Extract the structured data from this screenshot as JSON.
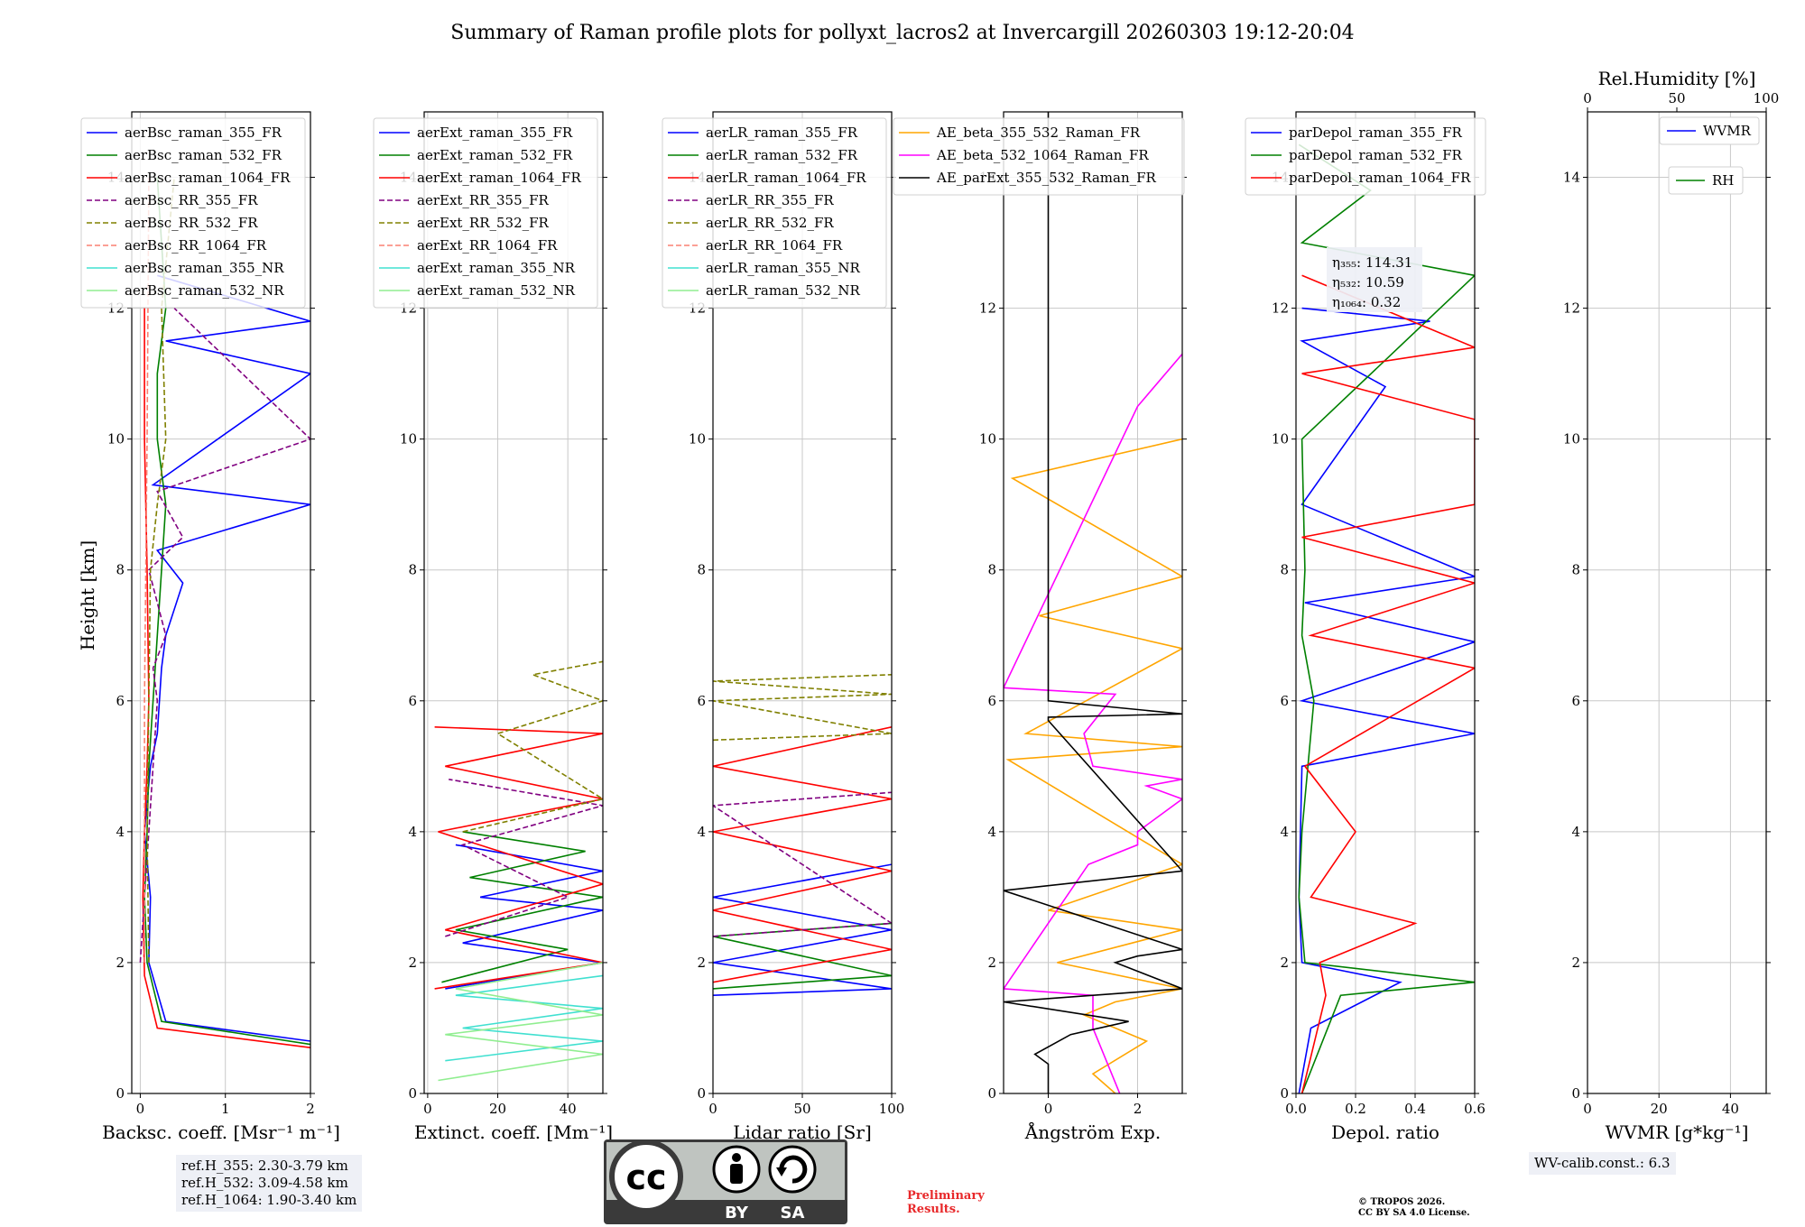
{
  "figure": {
    "title": "Summary of Raman profile plots for pollyxt_lacros2 at Invercargill 20260303 19:12-20:04",
    "ylabel": "Height [km]"
  },
  "chart_data": [
    {
      "type": "line",
      "id": "backscatter",
      "xlabel": "Backsc. coeff. [Msr⁻¹ m⁻¹]",
      "xlim": [
        -0.1,
        2
      ],
      "xticks": [
        "0",
        "1",
        "2"
      ],
      "xtick_values": [
        0,
        1,
        2
      ],
      "ylim": [
        0,
        15
      ],
      "yticks": [
        "0",
        "2",
        "4",
        "6",
        "8",
        "10",
        "12",
        "14"
      ],
      "ytick_values": [
        0,
        2,
        4,
        6,
        8,
        10,
        12,
        14
      ],
      "legend": "upper-left",
      "series": [
        {
          "name": "aerBsc_raman_355_FR",
          "color": "#0000ff",
          "dash": false,
          "x": [
            2.0,
            0.3,
            0.1,
            0.12,
            0.05,
            0.12,
            0.2,
            0.25,
            0.3,
            0.5,
            0.2,
            2.0,
            0.15,
            2.0,
            0.3,
            2.0,
            0.2
          ],
          "y": [
            0.8,
            1.1,
            2.0,
            3.0,
            4.0,
            5.0,
            5.5,
            6.5,
            7.0,
            7.8,
            8.3,
            9.0,
            9.3,
            11.0,
            11.5,
            11.8,
            12.5
          ]
        },
        {
          "name": "aerBsc_raman_532_FR",
          "color": "#008000",
          "dash": false,
          "x": [
            2.0,
            0.25,
            0.08,
            0.05,
            0.08,
            0.1,
            0.15,
            0.2,
            0.25,
            0.3,
            0.2,
            0.2,
            0.3,
            0.2
          ],
          "y": [
            0.75,
            1.1,
            2.0,
            3.0,
            4.0,
            5.0,
            6.0,
            7.0,
            8.0,
            9.0,
            10.0,
            11.0,
            12.0,
            14.0
          ]
        },
        {
          "name": "aerBsc_raman_1064_FR",
          "color": "#ff0000",
          "dash": false,
          "x": [
            2.0,
            0.2,
            0.05,
            0.03,
            0.05,
            0.08,
            0.1,
            0.08,
            0.05,
            0.05
          ],
          "y": [
            0.7,
            1.0,
            1.8,
            3.0,
            4.0,
            5.0,
            6.0,
            8.0,
            10.0,
            12.0
          ]
        },
        {
          "name": "aerBsc_RR_355_FR",
          "color": "#800080",
          "dash": true,
          "x": [
            0.0,
            0.05,
            0.1,
            0.15,
            0.2,
            0.15,
            0.3,
            0.1,
            0.5,
            0.2,
            2.0,
            0.4
          ],
          "y": [
            2.0,
            3.0,
            4.0,
            5.0,
            6.0,
            6.5,
            7.0,
            8.0,
            8.5,
            9.2,
            10.0,
            12.0
          ]
        },
        {
          "name": "aerBsc_RR_532_FR",
          "color": "#808000",
          "dash": true,
          "x": [
            0.1,
            0.08,
            0.1,
            0.12,
            0.2,
            0.3,
            0.25,
            0.4
          ],
          "y": [
            2.0,
            4.0,
            6.0,
            8.0,
            9.0,
            10.0,
            12.0,
            14.0
          ]
        },
        {
          "name": "aerBsc_RR_1064_FR",
          "color": "#fa8072",
          "dash": true,
          "x": [
            0.05,
            0.05,
            0.08,
            0.1
          ],
          "y": [
            2.0,
            6.0,
            10.0,
            14.0
          ]
        },
        {
          "name": "aerBsc_raman_355_NR",
          "color": "#40e0d0",
          "dash": false,
          "x": [],
          "y": []
        },
        {
          "name": "aerBsc_raman_532_NR",
          "color": "#90ee90",
          "dash": false,
          "x": [],
          "y": []
        }
      ]
    },
    {
      "type": "line",
      "id": "extinction",
      "xlabel": "Extinct. coeff. [Mm⁻¹]",
      "xlim": [
        -1,
        50
      ],
      "xticks": [
        "0",
        "20",
        "40"
      ],
      "xtick_values": [
        0,
        20,
        40
      ],
      "ylim": [
        0,
        15
      ],
      "yticks": [
        "0",
        "2",
        "4",
        "6",
        "8",
        "10",
        "12",
        "14"
      ],
      "ytick_values": [
        0,
        2,
        4,
        6,
        8,
        10,
        12,
        14
      ],
      "legend": "upper-left",
      "series": [
        {
          "name": "aerExt_raman_355_FR",
          "color": "#0000ff",
          "dash": false,
          "x": [
            5,
            50,
            10,
            50,
            15,
            50,
            8
          ],
          "y": [
            1.6,
            2.0,
            2.3,
            2.8,
            3.0,
            3.4,
            3.8
          ]
        },
        {
          "name": "aerExt_raman_532_FR",
          "color": "#008000",
          "dash": false,
          "x": [
            4,
            40,
            8,
            50,
            12,
            45,
            10
          ],
          "y": [
            1.7,
            2.2,
            2.5,
            3.0,
            3.3,
            3.7,
            4.0
          ]
        },
        {
          "name": "aerExt_raman_1064_FR",
          "color": "#ff0000",
          "dash": false,
          "x": [
            2,
            50,
            5,
            50,
            3,
            50,
            5,
            50,
            2
          ],
          "y": [
            1.6,
            2.0,
            2.5,
            3.2,
            4.0,
            4.5,
            5.0,
            5.5,
            5.6
          ]
        },
        {
          "name": "aerExt_RR_355_FR",
          "color": "#800080",
          "dash": true,
          "x": [
            5,
            40,
            10,
            50,
            6
          ],
          "y": [
            2.4,
            3.0,
            3.8,
            4.4,
            4.8
          ]
        },
        {
          "name": "aerExt_RR_532_FR",
          "color": "#808000",
          "dash": true,
          "x": [
            10,
            50,
            20,
            50,
            30,
            50
          ],
          "y": [
            4.0,
            4.5,
            5.5,
            6.0,
            6.4,
            6.6
          ]
        },
        {
          "name": "aerExt_RR_1064_FR",
          "color": "#fa8072",
          "dash": true,
          "x": [],
          "y": []
        },
        {
          "name": "aerExt_raman_355_NR",
          "color": "#40e0d0",
          "dash": false,
          "x": [
            5,
            50,
            10,
            50,
            8,
            50
          ],
          "y": [
            0.5,
            0.8,
            1.0,
            1.3,
            1.5,
            1.8
          ]
        },
        {
          "name": "aerExt_raman_532_NR",
          "color": "#90ee90",
          "dash": false,
          "x": [
            3,
            50,
            5,
            50,
            8,
            50
          ],
          "y": [
            0.2,
            0.6,
            0.9,
            1.2,
            1.6,
            2.0
          ]
        }
      ]
    },
    {
      "type": "line",
      "id": "lidar_ratio",
      "xlabel": "Lidar ratio [Sr]",
      "xlim": [
        0,
        100
      ],
      "xticks": [
        "0",
        "50",
        "100"
      ],
      "xtick_values": [
        0,
        50,
        100
      ],
      "ylim": [
        0,
        15
      ],
      "yticks": [
        "0",
        "2",
        "4",
        "6",
        "8",
        "10",
        "12",
        "14"
      ],
      "ytick_values": [
        0,
        2,
        4,
        6,
        8,
        10,
        12,
        14
      ],
      "legend": "upper-left",
      "series": [
        {
          "name": "aerLR_raman_355_FR",
          "color": "#0000ff",
          "dash": false,
          "x": [
            0,
            100,
            0,
            100,
            0,
            100
          ],
          "y": [
            1.5,
            1.6,
            2.0,
            2.5,
            3.0,
            3.5
          ]
        },
        {
          "name": "aerLR_raman_532_FR",
          "color": "#008000",
          "dash": false,
          "x": [
            0,
            100,
            0,
            100
          ],
          "y": [
            1.6,
            1.8,
            2.4,
            2.6
          ]
        },
        {
          "name": "aerLR_raman_1064_FR",
          "color": "#ff0000",
          "dash": false,
          "x": [
            0,
            100,
            0,
            100,
            0,
            100,
            0,
            100
          ],
          "y": [
            1.7,
            2.2,
            2.8,
            3.4,
            4.0,
            4.5,
            5.0,
            5.6
          ]
        },
        {
          "name": "aerLR_RR_355_FR",
          "color": "#800080",
          "dash": true,
          "x": [
            0,
            100,
            0,
            100
          ],
          "y": [
            2.4,
            2.6,
            4.4,
            4.6
          ]
        },
        {
          "name": "aerLR_RR_532_FR",
          "color": "#808000",
          "dash": true,
          "x": [
            0,
            100,
            0,
            100,
            0,
            100
          ],
          "y": [
            5.4,
            5.5,
            6.0,
            6.1,
            6.3,
            6.4
          ]
        },
        {
          "name": "aerLR_RR_1064_FR",
          "color": "#fa8072",
          "dash": true,
          "x": [],
          "y": []
        },
        {
          "name": "aerLR_raman_355_NR",
          "color": "#40e0d0",
          "dash": false,
          "x": [],
          "y": []
        },
        {
          "name": "aerLR_raman_532_NR",
          "color": "#90ee90",
          "dash": false,
          "x": [],
          "y": []
        }
      ]
    },
    {
      "type": "line",
      "id": "angstrom",
      "xlabel": "Ångström Exp.",
      "xlim": [
        -1,
        3
      ],
      "xticks": [
        "0",
        "2"
      ],
      "xtick_values": [
        0,
        2
      ],
      "ylim": [
        0,
        15
      ],
      "yticks": [
        "0",
        "2",
        "4",
        "6",
        "8",
        "10",
        "12",
        "14"
      ],
      "ytick_values": [
        0,
        2,
        4,
        6,
        8,
        10,
        12,
        14
      ],
      "legend": "upper-left",
      "series": [
        {
          "name": "AE_beta_355_532_Raman_FR",
          "color": "#ffa500",
          "dash": false,
          "x": [
            1.5,
            1.0,
            2.2,
            0.8,
            1.5,
            3.0,
            0.2,
            3.0,
            0.0,
            3.0,
            -0.9,
            3.0,
            -0.5,
            3.0,
            -0.2,
            3.0,
            -0.8,
            3.0
          ],
          "y": [
            0.0,
            0.3,
            0.8,
            1.2,
            1.4,
            1.6,
            2.0,
            2.5,
            2.8,
            3.5,
            5.1,
            5.3,
            5.5,
            6.8,
            7.3,
            7.9,
            9.4,
            10.0
          ]
        },
        {
          "name": "AE_beta_532_1064_Raman_FR",
          "color": "#ff00ff",
          "dash": false,
          "x": [
            1.6,
            1.0,
            1.0,
            -1.0,
            0.9,
            2.0,
            2.0,
            3.0,
            2.2,
            3.0,
            1.0,
            0.8,
            1.5,
            -1.0,
            2.0,
            3.0
          ],
          "y": [
            0.0,
            1.0,
            1.5,
            1.6,
            3.5,
            3.8,
            4.0,
            4.5,
            4.7,
            4.8,
            5.0,
            5.5,
            6.1,
            6.2,
            10.5,
            11.3
          ]
        },
        {
          "name": "AE_parExt_355_532_Raman_FR",
          "color": "#000000",
          "dash": false,
          "x": [
            0.0,
            0.0,
            -0.3,
            0.5,
            1.8,
            -1.0,
            3.0,
            1.5,
            2.0,
            3.0,
            -1.0,
            3.0,
            0.0,
            0.0,
            3.0,
            0.0,
            0.0
          ],
          "y": [
            0.0,
            0.45,
            0.6,
            0.9,
            1.1,
            1.4,
            1.6,
            2.0,
            2.1,
            2.2,
            3.1,
            3.4,
            5.7,
            5.75,
            5.8,
            6.0,
            15.0
          ]
        }
      ]
    },
    {
      "type": "line",
      "id": "depolarization",
      "xlabel": "Depol. ratio",
      "xlim": [
        0,
        0.6
      ],
      "xticks": [
        "0.0",
        "0.2",
        "0.4",
        "0.6"
      ],
      "xtick_values": [
        0,
        0.2,
        0.4,
        0.6
      ],
      "ylim": [
        0,
        15
      ],
      "yticks": [
        "0",
        "2",
        "4",
        "6",
        "8",
        "10",
        "12",
        "14"
      ],
      "ytick_values": [
        0,
        2,
        4,
        6,
        8,
        10,
        12,
        14
      ],
      "legend": "upper-left",
      "series": [
        {
          "name": "parDepol_raman_355_FR",
          "color": "#0000ff",
          "dash": false,
          "x": [
            0.01,
            0.05,
            0.35,
            0.02,
            0.01,
            0.02,
            0.6,
            0.02,
            0.6,
            0.03,
            0.6,
            0.02,
            0.3,
            0.02,
            0.45,
            0.02
          ],
          "y": [
            0.0,
            1.0,
            1.7,
            2.0,
            3.0,
            5.0,
            5.5,
            6.0,
            6.9,
            7.5,
            7.9,
            9.0,
            10.8,
            11.5,
            11.8,
            12.0
          ]
        },
        {
          "name": "parDepol_raman_532_FR",
          "color": "#008000",
          "dash": false,
          "x": [
            0.02,
            0.15,
            0.6,
            0.03,
            0.01,
            0.02,
            0.06,
            0.02,
            0.03,
            0.02,
            0.6,
            0.02,
            0.25,
            0.01
          ],
          "y": [
            0.0,
            1.5,
            1.7,
            2.0,
            3.0,
            4.0,
            6.0,
            7.0,
            8.0,
            10.0,
            12.5,
            13.0,
            13.8,
            14.5
          ]
        },
        {
          "name": "parDepol_raman_1064_FR",
          "color": "#ff0000",
          "dash": false,
          "x": [
            0.02,
            0.1,
            0.08,
            0.4,
            0.05,
            0.2,
            0.03,
            0.6,
            0.05,
            0.6,
            0.02,
            0.6,
            0.6,
            0.6,
            0.02,
            0.6,
            0.02
          ],
          "y": [
            0.0,
            1.5,
            2.0,
            2.6,
            3.0,
            4.0,
            5.0,
            6.5,
            7.0,
            7.8,
            8.5,
            9.0,
            10.0,
            10.3,
            11.0,
            11.4,
            12.5
          ]
        }
      ],
      "annotations": {
        "eta355": "η₃₅₅: 114.31",
        "eta532": "η₅₃₂: 10.59",
        "eta1064": "η₁₀₆₄: 0.32"
      }
    },
    {
      "type": "line",
      "id": "wvmr",
      "xlabel": "WVMR [g*kg⁻¹]",
      "xlim": [
        0,
        50
      ],
      "xticks": [
        "0",
        "20",
        "40"
      ],
      "xtick_values": [
        0,
        20,
        40
      ],
      "top_xlabel": "Rel.Humidity [%]",
      "top_xlim": [
        0,
        100
      ],
      "top_xticks": [
        "0",
        "50",
        "100"
      ],
      "top_xtick_values": [
        0,
        50,
        100
      ],
      "ylim": [
        0,
        15
      ],
      "yticks": [
        "0",
        "2",
        "4",
        "6",
        "8",
        "10",
        "12",
        "14"
      ],
      "ytick_values": [
        0,
        2,
        4,
        6,
        8,
        10,
        12,
        14
      ],
      "legend": "upper-right",
      "series": [
        {
          "name": "WVMR",
          "color": "#0000ff",
          "dash": false,
          "x": [],
          "y": []
        },
        {
          "name": "RH",
          "color": "#008000",
          "dash": false,
          "x": [],
          "y": []
        }
      ]
    }
  ],
  "notes": {
    "refh_355": "ref.H_355: 2.30-3.79 km",
    "refh_532": "ref.H_532: 3.09-4.58 km",
    "refh_1064": "ref.H_1064: 1.90-3.40 km",
    "wv_calib": "WV-calib.const.: 6.3",
    "preliminary_1": "Preliminary",
    "preliminary_2": "Results.",
    "copyright_1": "© TROPOS 2026.",
    "copyright_2": "CC BY SA 4.0 License.",
    "license_by": "BY",
    "license_sa": "SA",
    "license_cc": "cc"
  },
  "colors": {
    "preliminary": "#e8282a",
    "note_bg": "#eef0f6",
    "cc_bg": "#bfc4c0",
    "cc_dark": "#3a3a3a"
  }
}
